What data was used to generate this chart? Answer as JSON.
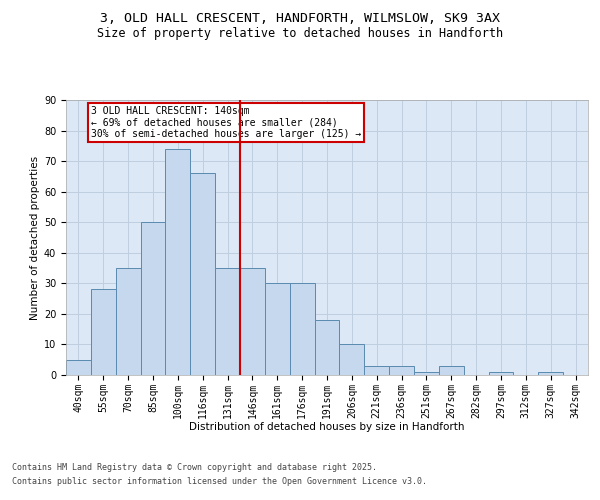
{
  "title_line1": "3, OLD HALL CRESCENT, HANDFORTH, WILMSLOW, SK9 3AX",
  "title_line2": "Size of property relative to detached houses in Handforth",
  "categories": [
    "40sqm",
    "55sqm",
    "70sqm",
    "85sqm",
    "100sqm",
    "116sqm",
    "131sqm",
    "146sqm",
    "161sqm",
    "176sqm",
    "191sqm",
    "206sqm",
    "221sqm",
    "236sqm",
    "251sqm",
    "267sqm",
    "282sqm",
    "297sqm",
    "312sqm",
    "327sqm",
    "342sqm"
  ],
  "values": [
    5,
    28,
    35,
    50,
    74,
    66,
    35,
    35,
    30,
    30,
    18,
    10,
    3,
    3,
    1,
    3,
    0,
    1,
    0,
    1,
    0
  ],
  "bar_color": "#c5d8ed",
  "bar_edge_color": "#5a8ab0",
  "vline_x": 6.5,
  "vline_color": "#cc0000",
  "annotation_box_text": "3 OLD HALL CRESCENT: 140sqm\n← 69% of detached houses are smaller (284)\n30% of semi-detached houses are larger (125) →",
  "annotation_box_facecolor": "white",
  "annotation_box_edgecolor": "#cc0000",
  "xlabel": "Distribution of detached houses by size in Handforth",
  "ylabel": "Number of detached properties",
  "ylim": [
    0,
    90
  ],
  "yticks": [
    0,
    10,
    20,
    30,
    40,
    50,
    60,
    70,
    80,
    90
  ],
  "grid_color": "#c0cfe0",
  "background_color": "#dce8f5",
  "footer_line1": "Contains HM Land Registry data © Crown copyright and database right 2025.",
  "footer_line2": "Contains public sector information licensed under the Open Government Licence v3.0.",
  "title_fontsize": 9.5,
  "subtitle_fontsize": 8.5,
  "axis_label_fontsize": 7.5,
  "tick_fontsize": 7,
  "annotation_fontsize": 7,
  "footer_fontsize": 6
}
